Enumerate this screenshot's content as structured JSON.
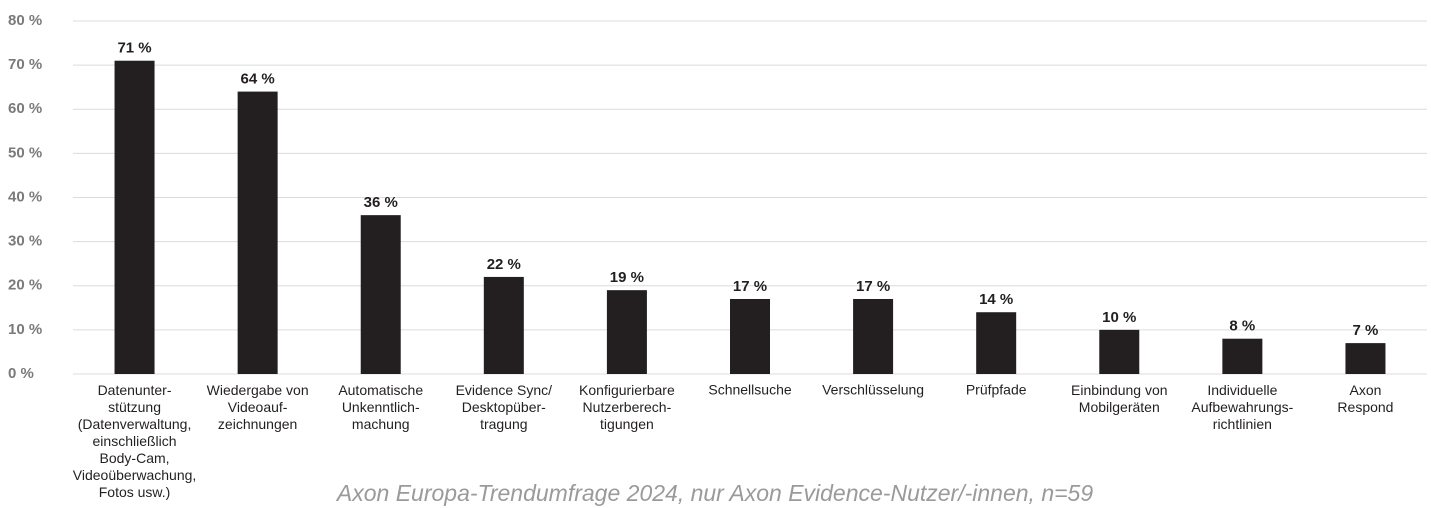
{
  "chart_data": {
    "type": "bar",
    "caption": "Axon Europa-Trendumfrage 2024, nur Axon Evidence-Nutzer/-innen, n=59",
    "categories": [
      "Datenunter-\nstützung\n(Datenverwaltung,\neinschließlich\nBody-Cam,\nVideoüberwachung,\nFotos usw.)",
      "Wiedergabe von\nVideoauf-\nzeichnungen",
      "Automatische\nUnkenntlich-\nmachung",
      "Evidence Sync/\nDesktopüber-\ntragung",
      "Konfigurierbare\nNutzerberech-\ntigungen",
      "Schnellsuche",
      "Verschlüsselung",
      "Prüfpfade",
      "Einbindung von\nMobilgeräten",
      "Individuelle\nAufbewahrungs-\nrichtlinien",
      "Axon\nRespond"
    ],
    "values": [
      71,
      64,
      36,
      22,
      19,
      17,
      17,
      14,
      10,
      8,
      7
    ],
    "value_labels": [
      "71 %",
      "64 %",
      "36 %",
      "22 %",
      "19 %",
      "17 %",
      "17 %",
      "14 %",
      "10 %",
      "8 %",
      "7 %"
    ],
    "color": "#231f20",
    "ylim": [
      0,
      80
    ],
    "yticks": [
      {
        "value": 0,
        "label": "0 %"
      },
      {
        "value": 10,
        "label": "10 %"
      },
      {
        "value": 20,
        "label": "20 %"
      },
      {
        "value": 30,
        "label": "30 %"
      },
      {
        "value": 40,
        "label": "40 %"
      },
      {
        "value": 50,
        "label": "50 %"
      },
      {
        "value": 60,
        "label": "60 %"
      },
      {
        "value": 70,
        "label": "70 %"
      },
      {
        "value": 80,
        "label": "80 %"
      }
    ],
    "grid": true
  }
}
